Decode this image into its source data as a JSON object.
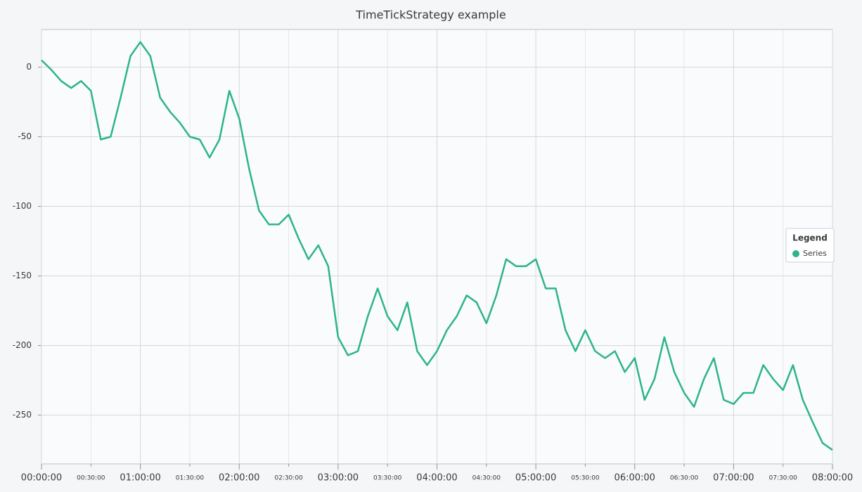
{
  "chart_data": {
    "type": "line",
    "title": "TimeTickStrategy example",
    "x": [
      "00:00:00",
      "00:06:00",
      "00:12:00",
      "00:18:00",
      "00:24:00",
      "00:30:00",
      "00:36:00",
      "00:42:00",
      "00:48:00",
      "00:54:00",
      "01:00:00",
      "01:06:00",
      "01:12:00",
      "01:18:00",
      "01:24:00",
      "01:30:00",
      "01:36:00",
      "01:42:00",
      "01:48:00",
      "01:54:00",
      "02:00:00",
      "02:06:00",
      "02:12:00",
      "02:18:00",
      "02:24:00",
      "02:30:00",
      "02:36:00",
      "02:42:00",
      "02:48:00",
      "02:54:00",
      "03:00:00",
      "03:06:00",
      "03:12:00",
      "03:18:00",
      "03:24:00",
      "03:30:00",
      "03:36:00",
      "03:42:00",
      "03:48:00",
      "03:54:00",
      "04:00:00",
      "04:06:00",
      "04:12:00",
      "04:18:00",
      "04:24:00",
      "04:30:00",
      "04:36:00",
      "04:42:00",
      "04:48:00",
      "04:54:00",
      "05:00:00",
      "05:06:00",
      "05:12:00",
      "05:18:00",
      "05:24:00",
      "05:30:00",
      "05:36:00",
      "05:42:00",
      "05:48:00",
      "05:54:00",
      "06:00:00",
      "06:06:00",
      "06:12:00",
      "06:18:00",
      "06:24:00",
      "06:30:00",
      "06:36:00",
      "06:42:00",
      "06:48:00",
      "06:54:00",
      "07:00:00",
      "07:06:00",
      "07:12:00",
      "07:18:00",
      "07:24:00",
      "07:30:00",
      "07:36:00",
      "07:42:00",
      "07:48:00",
      "07:54:00",
      "08:00:00"
    ],
    "series": [
      {
        "name": "Series",
        "color": "#2db48a",
        "values": [
          5,
          -2,
          -10,
          -15,
          -10,
          -17,
          -52,
          -50,
          -22,
          8,
          18,
          8,
          -22,
          -32,
          -40,
          -50,
          -52,
          -65,
          -52,
          -17,
          -37,
          -73,
          -103,
          -113,
          -113,
          -106,
          -123,
          -138,
          -128,
          -143,
          -194,
          -207,
          -204,
          -179,
          -159,
          -179,
          -189,
          -169,
          -204,
          -214,
          -204,
          -189,
          -179,
          -164,
          -169,
          -184,
          -164,
          -138,
          -143,
          -143,
          -138,
          -159,
          -159,
          -189,
          -204,
          -189,
          -204,
          -209,
          -204,
          -219,
          -209,
          -239,
          -224,
          -194,
          -219,
          -234,
          -244,
          -224,
          -209,
          -239,
          -242,
          -234,
          -234,
          -214,
          -224,
          -232,
          -214,
          -239,
          -255,
          -270,
          -275
        ]
      }
    ],
    "xlim": [
      "00:00:00",
      "08:00:00"
    ],
    "xticks": [
      "00:00:00",
      "00:30:00",
      "01:00:00",
      "01:30:00",
      "02:00:00",
      "02:30:00",
      "03:00:00",
      "03:30:00",
      "04:00:00",
      "04:30:00",
      "05:00:00",
      "05:30:00",
      "06:00:00",
      "06:30:00",
      "07:00:00",
      "07:30:00",
      "08:00:00"
    ],
    "ylim": [
      -285,
      27
    ],
    "yticks": [
      0,
      -50,
      -100,
      -150,
      -200,
      -250
    ],
    "grid": true,
    "legend_title": "Legend",
    "legend": "right"
  }
}
